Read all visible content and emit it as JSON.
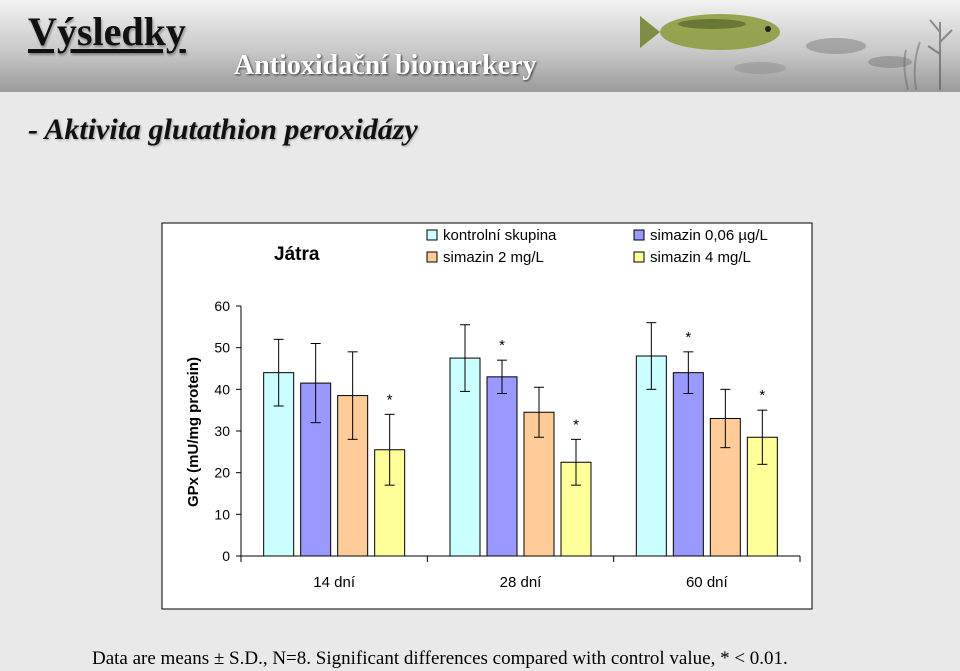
{
  "slide": {
    "title": "Výsledky",
    "subtitle": "Antioxidační biomarkery",
    "heading": "- Aktivita glutathion peroxidázy",
    "footnote": "Data are means ± S.D., N=8. Significant differences compared with control value, * < 0.01."
  },
  "chart_data": {
    "type": "bar",
    "title": "Játra",
    "ylabel": "GPx (mU/mg protein)",
    "xlabel": "",
    "ylim": [
      0,
      60
    ],
    "yticks": [
      0,
      10,
      20,
      30,
      40,
      50,
      60
    ],
    "categories": [
      "14 dní",
      "28 dní",
      "60 dní"
    ],
    "legend_position": "top-right",
    "series": [
      {
        "name": "kontrolní skupina",
        "color": "#ccffff",
        "values": [
          44,
          47.5,
          48
        ],
        "errors": [
          8,
          8,
          8
        ],
        "significant": [
          false,
          false,
          false
        ]
      },
      {
        "name": "simazin 0,06 µg/L",
        "color": "#9999ff",
        "values": [
          41.5,
          43,
          44
        ],
        "errors": [
          9.5,
          4,
          5
        ],
        "significant": [
          false,
          true,
          true
        ]
      },
      {
        "name": "simazin 2 mg/L",
        "color": "#ffcc99",
        "values": [
          38.5,
          34.5,
          33
        ],
        "errors": [
          10.5,
          6,
          7
        ],
        "significant": [
          false,
          false,
          false
        ]
      },
      {
        "name": "simazin 4 mg/L",
        "color": "#ffff99",
        "values": [
          25.5,
          22.5,
          28.5
        ],
        "errors": [
          8.5,
          5.5,
          6.5
        ],
        "significant": [
          true,
          true,
          true
        ]
      }
    ],
    "significance_marker": "*"
  }
}
